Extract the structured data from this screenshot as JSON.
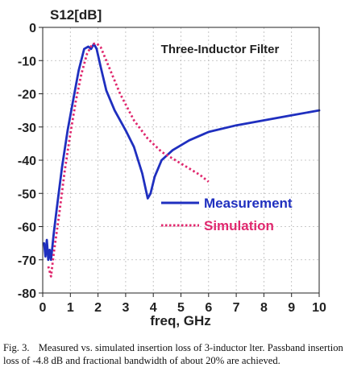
{
  "chart_data": {
    "type": "line",
    "title": "Three-Inductor Filter",
    "ylabel": "S12[dB]",
    "xlabel": "freq, GHz",
    "xlim": [
      0,
      10
    ],
    "ylim": [
      -80,
      0
    ],
    "x_ticks": [
      "0",
      "1",
      "2",
      "3",
      "4",
      "5",
      "6",
      "7",
      "8",
      "9",
      "10"
    ],
    "y_ticks": [
      "0",
      "-10",
      "-20",
      "-30",
      "-40",
      "-50",
      "-60",
      "-70",
      "-80"
    ],
    "grid": true,
    "legend_position": "right-middle",
    "series": [
      {
        "name": "Measurement",
        "color": "#1f2fbf",
        "style": "solid",
        "points": [
          [
            0.05,
            -65
          ],
          [
            0.1,
            -69
          ],
          [
            0.15,
            -64
          ],
          [
            0.2,
            -70
          ],
          [
            0.25,
            -67
          ],
          [
            0.3,
            -70
          ],
          [
            0.35,
            -66
          ],
          [
            0.4,
            -62
          ],
          [
            0.5,
            -55
          ],
          [
            0.7,
            -42
          ],
          [
            0.9,
            -31
          ],
          [
            1.1,
            -22
          ],
          [
            1.3,
            -13
          ],
          [
            1.5,
            -6.5
          ],
          [
            1.65,
            -5.8
          ],
          [
            1.75,
            -6.5
          ],
          [
            1.85,
            -5.0
          ],
          [
            1.95,
            -6.5
          ],
          [
            2.1,
            -12
          ],
          [
            2.3,
            -19
          ],
          [
            2.6,
            -25
          ],
          [
            3.0,
            -31
          ],
          [
            3.3,
            -36
          ],
          [
            3.6,
            -44
          ],
          [
            3.8,
            -51.5
          ],
          [
            3.9,
            -50
          ],
          [
            4.05,
            -45
          ],
          [
            4.3,
            -40
          ],
          [
            4.7,
            -37
          ],
          [
            5.3,
            -34
          ],
          [
            6.0,
            -31.5
          ],
          [
            7.0,
            -29.5
          ],
          [
            8.0,
            -28
          ],
          [
            9.0,
            -26.5
          ],
          [
            10.0,
            -25
          ]
        ]
      },
      {
        "name": "Simulation",
        "color": "#e0286e",
        "style": "dotted",
        "points": [
          [
            0.2,
            -72
          ],
          [
            0.3,
            -75
          ],
          [
            0.4,
            -68
          ],
          [
            0.6,
            -56
          ],
          [
            0.8,
            -43
          ],
          [
            1.0,
            -32
          ],
          [
            1.2,
            -22
          ],
          [
            1.4,
            -14
          ],
          [
            1.6,
            -8
          ],
          [
            1.8,
            -5
          ],
          [
            1.95,
            -4.8
          ],
          [
            2.1,
            -6
          ],
          [
            2.4,
            -12
          ],
          [
            2.8,
            -20
          ],
          [
            3.3,
            -28
          ],
          [
            3.8,
            -33.5
          ],
          [
            4.3,
            -37.5
          ],
          [
            4.8,
            -40
          ],
          [
            5.3,
            -42.5
          ],
          [
            5.7,
            -44.5
          ],
          [
            6.0,
            -46.5
          ]
        ]
      }
    ]
  },
  "caption": {
    "label": "Fig. 3.",
    "text": "Measured vs. simulated insertion loss of 3-inductor  lter. Passband insertion loss of -4.8 dB and fractional bandwidth of about 20% are achieved."
  }
}
